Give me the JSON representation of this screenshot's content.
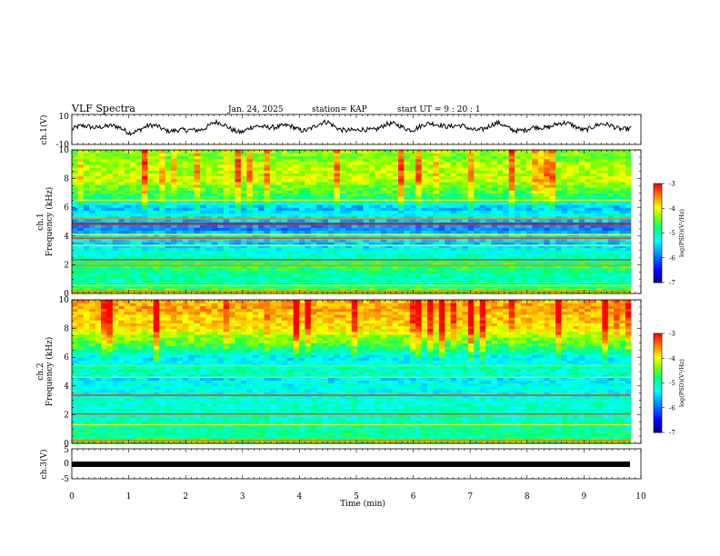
{
  "header": {
    "title": "VLF Spectra",
    "date": "Jan. 24, 2025",
    "station": "station= KAP",
    "start": "start  UT =  9 : 20 : 1"
  },
  "colors": {
    "scale": [
      "#000080",
      "#0000ff",
      "#0080ff",
      "#00ffff",
      "#00ff80",
      "#80ff00",
      "#ffff00",
      "#ff8000",
      "#ff0000",
      "#ffffff"
    ]
  },
  "chart_data": [
    {
      "type": "line",
      "panel": "ch1-waveform",
      "ylabel": "ch.1(V)",
      "ylim": [
        -10,
        10
      ],
      "yticks": [
        "10",
        "-10"
      ],
      "note": "VLF waveform trace, slow oscillation roughly between -3 and +6 V",
      "x": [
        0,
        0.5,
        1,
        1.5,
        2,
        2.5,
        3,
        3.5,
        4,
        4.5,
        5,
        5.5,
        6,
        6.5,
        7,
        7.5,
        8,
        8.5,
        9,
        9.5,
        9.8
      ],
      "y": [
        0,
        3,
        -1,
        2,
        -2,
        4,
        -1,
        3,
        0,
        4,
        -2,
        3,
        1,
        4,
        0,
        3,
        -1,
        4,
        1,
        3,
        0
      ]
    },
    {
      "type": "heatmap",
      "panel": "ch1-spectrogram",
      "ylabel": "ch.1 Frequency (kHz)",
      "ylim": [
        0,
        10
      ],
      "yticks": [
        "0",
        "2",
        "4",
        "6",
        "8",
        "10"
      ],
      "xlim": [
        0,
        9.83
      ],
      "colorbar": {
        "label": "log(PSD)(V²/Hz)",
        "range": [
          -7,
          -3
        ],
        "ticks": [
          "-3",
          "-4",
          "-5",
          "-6",
          "-7"
        ]
      },
      "frequency_profile": {
        "freq_khz": [
          0,
          0.5,
          1,
          1.5,
          2,
          2.5,
          3,
          3.5,
          4,
          4.5,
          5,
          5.5,
          6,
          6.5,
          7,
          7.5,
          8,
          8.5,
          9,
          9.5,
          10
        ],
        "mean_log_psd": [
          -4.2,
          -4.8,
          -5.0,
          -4.9,
          -4.6,
          -5.0,
          -5.2,
          -5.6,
          -5.3,
          -5.9,
          -5.7,
          -5.2,
          -5.7,
          -4.9,
          -4.6,
          -4.4,
          -4.1,
          -4.2,
          -4.2,
          -4.4,
          -4.3
        ]
      }
    },
    {
      "type": "heatmap",
      "panel": "ch2-spectrogram",
      "ylabel": "ch.2 Frequency (kHz)",
      "ylim": [
        0,
        10
      ],
      "yticks": [
        "0",
        "2",
        "4",
        "6",
        "8",
        "10"
      ],
      "xlim": [
        0,
        9.83
      ],
      "colorbar": {
        "label": "log(PSD)(V²/Hz)",
        "range": [
          -7,
          -3
        ],
        "ticks": [
          "-3",
          "-4",
          "-5",
          "-6",
          "-7"
        ]
      },
      "frequency_profile": {
        "freq_khz": [
          0,
          0.5,
          1,
          1.5,
          2,
          2.5,
          3,
          3.5,
          4,
          4.5,
          5,
          5.5,
          6,
          6.5,
          7,
          7.5,
          8,
          8.5,
          9,
          9.5,
          10
        ],
        "mean_log_psd": [
          -4.4,
          -4.9,
          -4.9,
          -5.0,
          -5.1,
          -5.1,
          -5.1,
          -5.3,
          -5.2,
          -5.4,
          -5.0,
          -5.2,
          -5.4,
          -4.9,
          -4.5,
          -4.3,
          -3.9,
          -3.8,
          -3.7,
          -3.6,
          -3.7
        ]
      }
    },
    {
      "type": "line",
      "panel": "ch3-waveform",
      "ylabel": "ch.3(V)",
      "ylim": [
        -5,
        5
      ],
      "yticks": [
        "5",
        "0",
        "-5"
      ],
      "note": "flat thick trace near -1 V",
      "x": [
        0,
        9.8
      ],
      "y": [
        -1,
        -1
      ]
    }
  ],
  "xaxis": {
    "label": "Time  (min)",
    "ticks": [
      "0",
      "1",
      "2",
      "3",
      "4",
      "5",
      "6",
      "7",
      "8",
      "9",
      "10"
    ],
    "range": [
      0,
      10
    ]
  }
}
